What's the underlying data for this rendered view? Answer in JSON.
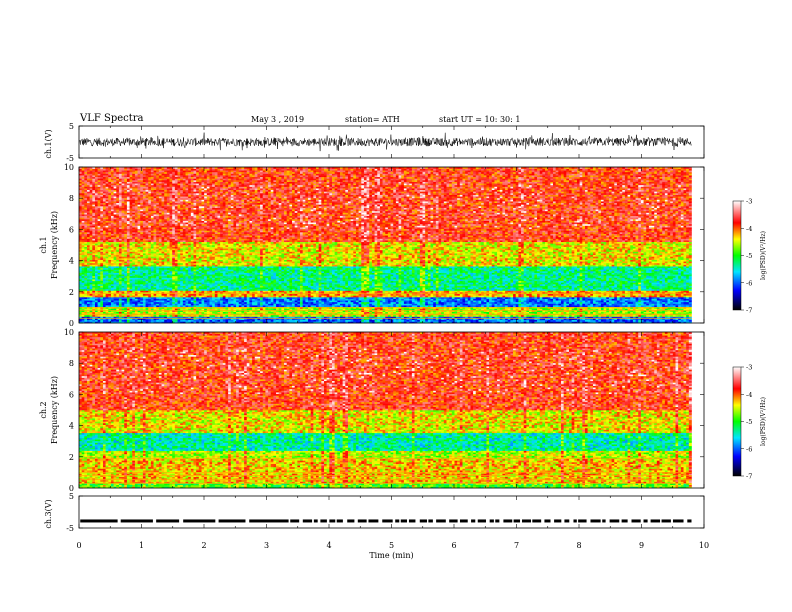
{
  "header": {
    "title": "VLF  Spectra",
    "date": "May 3  , 2019",
    "station": "station= ATH",
    "start": "start  UT  =    10: 30: 1"
  },
  "chart_data": [
    {
      "type": "line",
      "panel": "channel-1-waveform",
      "ylabel": "ch.1(V)",
      "ylim": [
        -5,
        5
      ],
      "y_ticks": [
        "5",
        "-5"
      ],
      "xlim": [
        0,
        10
      ],
      "series": [
        {
          "values_description": "noisy broadband waveform fluctuating roughly between -3 and 3 V over 0–9.8 min"
        }
      ]
    },
    {
      "type": "heatmap",
      "panel": "channel-1-spectrogram",
      "ylabel": "ch.1\nFrequency  (kHz)",
      "ylim": [
        0,
        10
      ],
      "y_ticks": [
        "0",
        "2",
        "4",
        "6",
        "8",
        "10"
      ],
      "xlim": [
        0,
        9.8
      ],
      "colorbar": {
        "label": "log(PSD)(V²/Hz)",
        "range": [
          -7,
          -3
        ],
        "ticks": [
          "-3",
          "-4",
          "-5",
          "-6",
          "-7"
        ]
      },
      "bands": [
        {
          "f_range": [
            0.0,
            0.4
          ],
          "level": -6.0
        },
        {
          "f_range": [
            0.4,
            1.0
          ],
          "level": -4.6
        },
        {
          "f_range": [
            1.0,
            1.7
          ],
          "level": -5.9
        },
        {
          "f_range": [
            1.7,
            2.1
          ],
          "level": -4.2
        },
        {
          "f_range": [
            2.1,
            3.6
          ],
          "level": -5.3
        },
        {
          "f_range": [
            3.6,
            5.2
          ],
          "level": -4.4
        },
        {
          "f_range": [
            5.2,
            10.0
          ],
          "level": -3.8
        }
      ]
    },
    {
      "type": "heatmap",
      "panel": "channel-2-spectrogram",
      "ylabel": "ch.2\nFrequency  (kHz)",
      "ylim": [
        0,
        10
      ],
      "y_ticks": [
        "0",
        "2",
        "4",
        "6",
        "8",
        "10"
      ],
      "xlim": [
        0,
        9.8
      ],
      "colorbar": {
        "label": "log(PSD)(V²/Hz)",
        "range": [
          -7,
          -3
        ],
        "ticks": [
          "-3",
          "-4",
          "-5",
          "-6",
          "-7"
        ]
      },
      "bands": [
        {
          "f_range": [
            0.0,
            0.3
          ],
          "level": -4.9
        },
        {
          "f_range": [
            0.3,
            1.9
          ],
          "level": -4.3
        },
        {
          "f_range": [
            1.9,
            2.4
          ],
          "level": -4.6
        },
        {
          "f_range": [
            2.4,
            3.5
          ],
          "level": -5.4
        },
        {
          "f_range": [
            3.5,
            5.0
          ],
          "level": -4.4
        },
        {
          "f_range": [
            5.0,
            10.0
          ],
          "level": -3.8
        }
      ]
    },
    {
      "type": "line",
      "panel": "channel-3-waveform",
      "ylabel": "ch.3(V)",
      "ylim": [
        -5,
        5
      ],
      "y_ticks": [
        "5",
        "-5"
      ],
      "xlabel": "Time  (min)",
      "xlim": [
        0,
        10
      ],
      "x_ticks": [
        "0",
        "1",
        "2",
        "3",
        "4",
        "5",
        "6",
        "7",
        "8",
        "9",
        "10"
      ],
      "series": [
        {
          "values_description": "near-constant level of about -2.8 V with small dashed gaps"
        }
      ]
    }
  ]
}
